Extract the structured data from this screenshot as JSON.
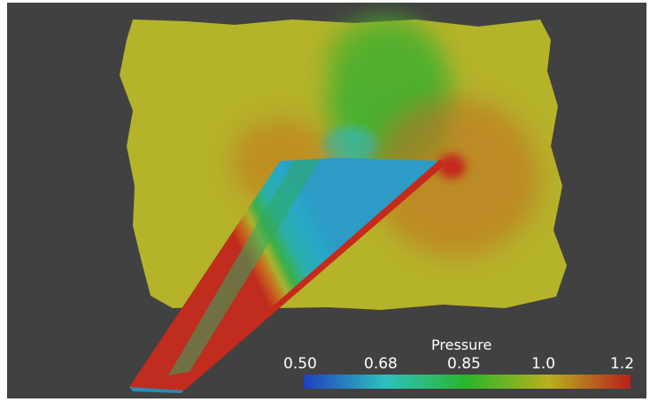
{
  "legend": {
    "title": "Pressure",
    "ticks": [
      "0.50",
      "0.68",
      "0.85",
      "1.0",
      "1.2"
    ],
    "range": [
      0.5,
      1.2
    ],
    "colormap": [
      "#1f3fbf",
      "#2fc0c0",
      "#2ab62a",
      "#b8b01e",
      "#b9201c"
    ]
  },
  "colors": {
    "background": "#414141",
    "far_field": "#b5b32a",
    "suction": "#22aac8",
    "stagnation": "#c0281d"
  }
}
